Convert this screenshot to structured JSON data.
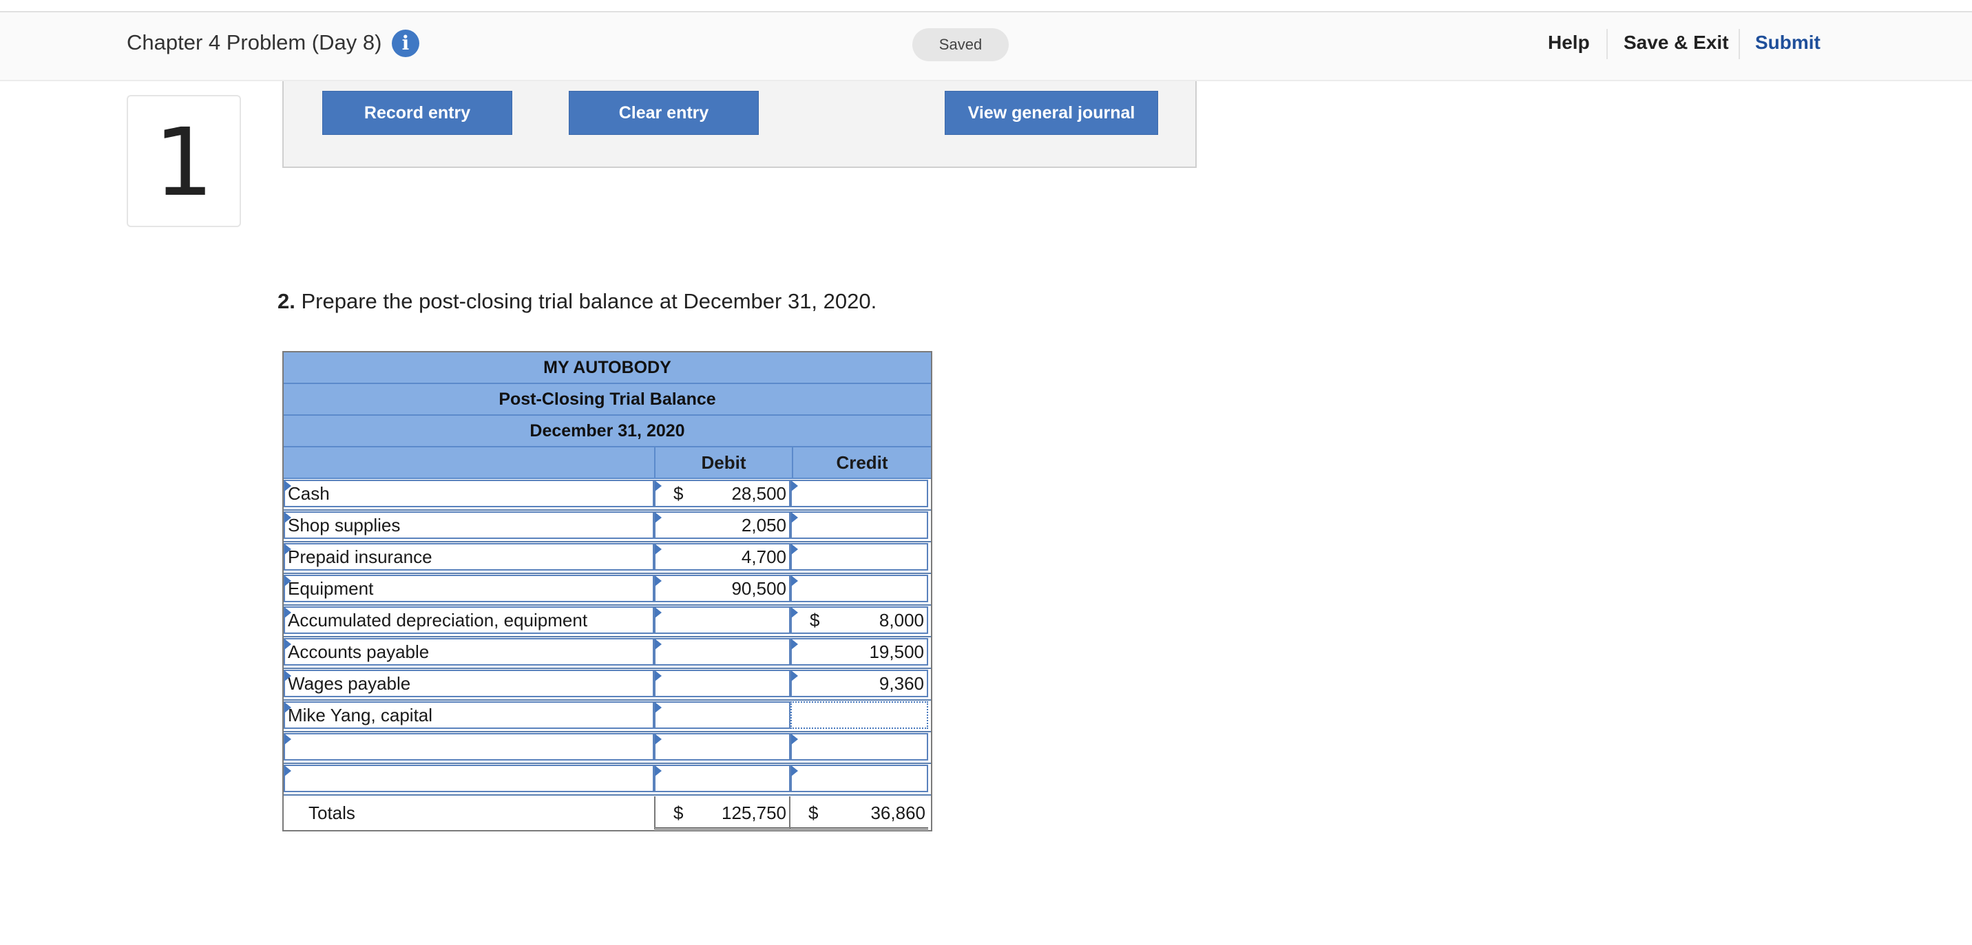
{
  "header": {
    "title": "Chapter 4 Problem (Day 8)",
    "info_icon": "info-icon",
    "status": "Saved",
    "help": "Help",
    "save_exit": "Save & Exit",
    "submit": "Submit"
  },
  "question": {
    "number": "1"
  },
  "toolbar": {
    "record_entry": "Record entry",
    "clear_entry": "Clear entry",
    "view_journal": "View general journal"
  },
  "instruction": {
    "num": "2.",
    "text": " Prepare the post-closing trial balance at December 31, 2020."
  },
  "trial_balance": {
    "company": "MY AUTOBODY",
    "statement": "Post-Closing Trial Balance",
    "date": "December 31, 2020",
    "debit_header": "Debit",
    "credit_header": "Credit",
    "rows": [
      {
        "account": "Cash",
        "debit_dollar": "$",
        "debit": "28,500",
        "credit_dollar": "",
        "credit": ""
      },
      {
        "account": "Shop supplies",
        "debit_dollar": "",
        "debit": "2,050",
        "credit_dollar": "",
        "credit": ""
      },
      {
        "account": "Prepaid insurance",
        "debit_dollar": "",
        "debit": "4,700",
        "credit_dollar": "",
        "credit": ""
      },
      {
        "account": "Equipment",
        "debit_dollar": "",
        "debit": "90,500",
        "credit_dollar": "",
        "credit": ""
      },
      {
        "account": "Accumulated depreciation, equipment",
        "debit_dollar": "",
        "debit": "",
        "credit_dollar": "$",
        "credit": "8,000"
      },
      {
        "account": "Accounts payable",
        "debit_dollar": "",
        "debit": "",
        "credit_dollar": "",
        "credit": "19,500"
      },
      {
        "account": "Wages payable",
        "debit_dollar": "",
        "debit": "",
        "credit_dollar": "",
        "credit": "9,360"
      },
      {
        "account": "Mike Yang, capital",
        "debit_dollar": "",
        "debit": "",
        "credit_dollar": "",
        "credit": ""
      },
      {
        "account": "",
        "debit_dollar": "",
        "debit": "",
        "credit_dollar": "",
        "credit": ""
      },
      {
        "account": "",
        "debit_dollar": "",
        "debit": "",
        "credit_dollar": "",
        "credit": ""
      }
    ],
    "totals": {
      "label": "Totals",
      "debit_dollar": "$",
      "debit": "125,750",
      "credit_dollar": "$",
      "credit": "36,860"
    }
  }
}
